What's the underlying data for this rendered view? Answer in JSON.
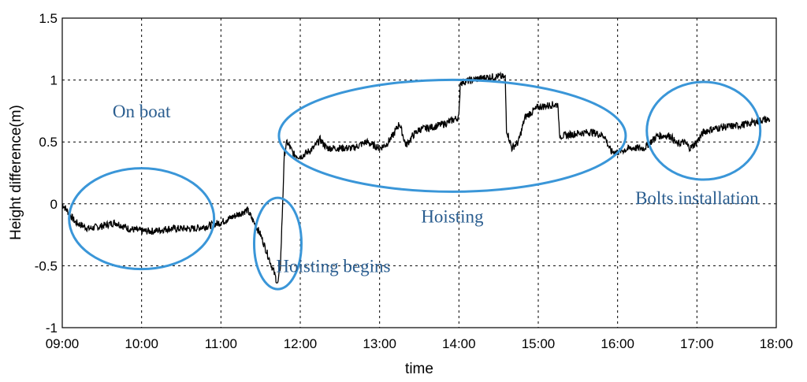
{
  "chart_data": {
    "type": "line",
    "xlabel": "time",
    "ylabel": "Height difference(m)",
    "xlim": [
      "09:00",
      "18:00"
    ],
    "ylim": [
      -1,
      1.5
    ],
    "grid": true,
    "x_ticks": [
      "09:00",
      "10:00",
      "11:00",
      "12:00",
      "13:00",
      "14:00",
      "15:00",
      "16:00",
      "17:00",
      "18:00"
    ],
    "y_ticks": [
      "-1",
      "-0.5",
      "0",
      "0.5",
      "1",
      "1.5"
    ],
    "series": [
      {
        "color": "#000000",
        "x": [
          "09:00",
          "09:10",
          "09:20",
          "09:30",
          "09:40",
          "09:50",
          "10:00",
          "10:10",
          "10:20",
          "10:30",
          "10:40",
          "10:50",
          "11:00",
          "11:10",
          "11:20",
          "11:30",
          "11:35",
          "11:40",
          "11:43",
          "11:45",
          "11:47",
          "11:48",
          "11:50",
          "11:55",
          "12:00",
          "12:10",
          "12:15",
          "12:20",
          "12:30",
          "12:40",
          "12:50",
          "13:00",
          "13:05",
          "13:10",
          "13:15",
          "13:20",
          "13:25",
          "13:30",
          "13:40",
          "13:50",
          "14:00",
          "14:01",
          "14:10",
          "14:20",
          "14:30",
          "14:35",
          "14:36",
          "14:40",
          "14:45",
          "14:50",
          "15:00",
          "15:10",
          "15:15",
          "15:16",
          "15:20",
          "15:30",
          "15:40",
          "15:50",
          "15:55",
          "16:00",
          "16:10",
          "16:20",
          "16:30",
          "16:40",
          "16:45",
          "16:50",
          "16:55",
          "17:00",
          "17:05",
          "17:10",
          "17:20",
          "17:30",
          "17:40",
          "17:50",
          "17:55"
        ],
        "y": [
          0.0,
          -0.15,
          -0.2,
          -0.18,
          -0.15,
          -0.2,
          -0.22,
          -0.22,
          -0.2,
          -0.2,
          -0.2,
          -0.18,
          -0.15,
          -0.1,
          -0.05,
          -0.25,
          -0.4,
          -0.55,
          -0.65,
          -0.5,
          0.1,
          0.4,
          0.5,
          0.4,
          0.38,
          0.45,
          0.52,
          0.45,
          0.45,
          0.45,
          0.5,
          0.45,
          0.48,
          0.55,
          0.65,
          0.47,
          0.55,
          0.6,
          0.62,
          0.65,
          0.7,
          0.98,
          1.0,
          1.02,
          1.03,
          1.02,
          0.6,
          0.45,
          0.5,
          0.7,
          0.78,
          0.8,
          0.8,
          0.55,
          0.55,
          0.57,
          0.58,
          0.55,
          0.42,
          0.42,
          0.45,
          0.45,
          0.55,
          0.55,
          0.48,
          0.5,
          0.45,
          0.5,
          0.58,
          0.6,
          0.62,
          0.63,
          0.65,
          0.68,
          0.68
        ]
      }
    ],
    "annotations": [
      {
        "text": "On boat",
        "at": [
          "10:00",
          0.7
        ]
      },
      {
        "text": "Hoisting begins",
        "at": [
          "12:25",
          -0.55
        ]
      },
      {
        "text": "Hoisting",
        "at": [
          "13:55",
          -0.15
        ]
      },
      {
        "text": "Bolts installation",
        "at": [
          "17:00",
          0.0
        ]
      }
    ],
    "highlight_ellipses": [
      {
        "center": [
          "10:00",
          -0.12
        ],
        "label": "On boat window"
      },
      {
        "center": [
          "11:43",
          -0.32
        ],
        "label": "Hoisting begins window"
      },
      {
        "center": [
          "13:55",
          0.55
        ],
        "label": "Hoisting window"
      },
      {
        "center": [
          "17:05",
          0.59
        ],
        "label": "Bolts installation window"
      }
    ],
    "ellipse_color": "#3a96d8",
    "annotation_color": "#2a5d8f"
  }
}
